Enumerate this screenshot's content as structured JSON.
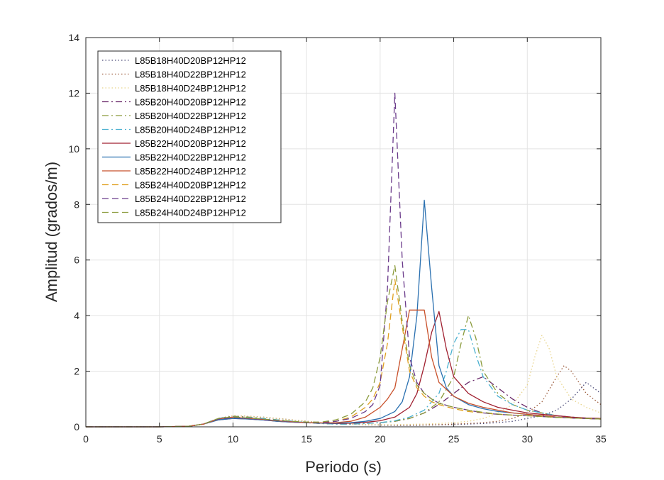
{
  "chart_data": {
    "type": "line",
    "title": "",
    "xlabel": "Periodo (s)",
    "ylabel": "Amplitud (grados/m)",
    "xlim": [
      0,
      35
    ],
    "ylim": [
      0,
      14
    ],
    "xticks": [
      0,
      5,
      10,
      15,
      20,
      25,
      30,
      35
    ],
    "yticks": [
      0,
      2,
      4,
      6,
      8,
      10,
      12,
      14
    ],
    "grid": true,
    "legend_position": "top-left",
    "series": [
      {
        "name": "L85B18H40D20BP12HP12",
        "color": "#4a4a78",
        "dash": "dotted",
        "x": [
          0,
          5,
          7,
          8,
          9,
          10,
          11,
          12,
          13,
          14,
          15,
          16,
          17,
          18,
          19,
          20,
          21,
          22,
          23,
          24,
          25,
          26,
          27,
          28,
          29,
          30,
          31,
          32,
          33,
          34,
          35
        ],
        "y": [
          0,
          0,
          0.02,
          0.1,
          0.3,
          0.4,
          0.38,
          0.35,
          0.3,
          0.25,
          0.2,
          0.15,
          0.12,
          0.1,
          0.08,
          0.06,
          0.05,
          0.05,
          0.06,
          0.07,
          0.08,
          0.1,
          0.12,
          0.15,
          0.2,
          0.3,
          0.4,
          0.6,
          1.0,
          1.6,
          1.2
        ]
      },
      {
        "name": "L85B18H40D22BP12HP12",
        "color": "#9a5a3a",
        "dash": "dotted",
        "x": [
          0,
          5,
          7,
          8,
          9,
          10,
          11,
          12,
          13,
          14,
          15,
          16,
          17,
          18,
          19,
          20,
          21,
          22,
          23,
          24,
          25,
          26,
          27,
          28,
          29,
          30,
          31,
          32,
          32.5,
          33,
          34,
          35
        ],
        "y": [
          0,
          0,
          0.02,
          0.1,
          0.3,
          0.4,
          0.38,
          0.35,
          0.3,
          0.25,
          0.2,
          0.15,
          0.12,
          0.1,
          0.08,
          0.07,
          0.06,
          0.06,
          0.07,
          0.08,
          0.1,
          0.12,
          0.15,
          0.2,
          0.3,
          0.5,
          0.9,
          1.8,
          2.2,
          2.0,
          1.2,
          0.8
        ]
      },
      {
        "name": "L85B18H40D24BP12HP12",
        "color": "#e8d48a",
        "dash": "dotted",
        "x": [
          0,
          5,
          7,
          8,
          9,
          10,
          11,
          12,
          13,
          14,
          15,
          16,
          17,
          18,
          19,
          20,
          21,
          22,
          23,
          24,
          25,
          26,
          27,
          28,
          29,
          30,
          30.5,
          31,
          31.5,
          32,
          33,
          34,
          35
        ],
        "y": [
          0,
          0,
          0.02,
          0.1,
          0.3,
          0.4,
          0.38,
          0.35,
          0.3,
          0.25,
          0.2,
          0.15,
          0.12,
          0.1,
          0.09,
          0.08,
          0.08,
          0.09,
          0.1,
          0.12,
          0.15,
          0.2,
          0.3,
          0.5,
          0.8,
          1.5,
          2.5,
          3.3,
          2.8,
          1.8,
          1.0,
          0.7,
          0.5
        ]
      },
      {
        "name": "L85B20H40D20BP12HP12",
        "color": "#6a2a6a",
        "dash": "dashdot",
        "x": [
          0,
          5,
          7,
          8,
          9,
          10,
          11,
          12,
          13,
          14,
          15,
          16,
          17,
          18,
          19,
          20,
          21,
          22,
          23,
          24,
          25,
          26,
          27,
          28,
          29,
          30,
          31,
          32,
          33,
          34,
          35
        ],
        "y": [
          0,
          0,
          0.02,
          0.1,
          0.3,
          0.38,
          0.35,
          0.3,
          0.25,
          0.2,
          0.15,
          0.12,
          0.1,
          0.1,
          0.12,
          0.15,
          0.2,
          0.3,
          0.5,
          0.8,
          1.2,
          1.6,
          1.8,
          1.4,
          1.0,
          0.7,
          0.5,
          0.4,
          0.35,
          0.3,
          0.28
        ]
      },
      {
        "name": "L85B20H40D22BP12HP12",
        "color": "#8a9a3a",
        "dash": "dashdot",
        "x": [
          0,
          5,
          7,
          8,
          9,
          10,
          11,
          12,
          13,
          14,
          15,
          16,
          17,
          18,
          19,
          20,
          21,
          22,
          23,
          24,
          25,
          25.5,
          26,
          26.5,
          27,
          28,
          29,
          30,
          31,
          32,
          33,
          34,
          35
        ],
        "y": [
          0,
          0,
          0.02,
          0.1,
          0.3,
          0.38,
          0.35,
          0.3,
          0.25,
          0.2,
          0.15,
          0.12,
          0.1,
          0.1,
          0.12,
          0.15,
          0.2,
          0.3,
          0.5,
          0.9,
          1.8,
          3.0,
          4.0,
          3.2,
          2.0,
          1.2,
          0.8,
          0.6,
          0.5,
          0.4,
          0.35,
          0.3,
          0.28
        ]
      },
      {
        "name": "L85B20H40D24BP12HP12",
        "color": "#4ab0d0",
        "dash": "dashdot",
        "x": [
          0,
          5,
          7,
          8,
          9,
          10,
          11,
          12,
          13,
          14,
          15,
          16,
          17,
          18,
          19,
          20,
          21,
          22,
          23,
          24,
          24.5,
          25,
          25.5,
          26,
          26.5,
          27,
          28,
          29,
          30,
          31,
          32,
          33,
          34,
          35
        ],
        "y": [
          0,
          0,
          0.02,
          0.1,
          0.3,
          0.36,
          0.33,
          0.3,
          0.25,
          0.2,
          0.15,
          0.12,
          0.1,
          0.1,
          0.12,
          0.15,
          0.22,
          0.35,
          0.6,
          1.2,
          2.0,
          3.0,
          3.5,
          3.5,
          2.6,
          1.8,
          1.1,
          0.8,
          0.6,
          0.5,
          0.4,
          0.35,
          0.3,
          0.28
        ]
      },
      {
        "name": "L85B22H40D20BP12HP12",
        "color": "#a02030",
        "dash": "solid",
        "x": [
          0,
          5,
          7,
          8,
          9,
          10,
          11,
          12,
          13,
          14,
          15,
          16,
          17,
          18,
          19,
          20,
          21,
          22,
          22.5,
          23,
          23.5,
          24,
          24.5,
          25,
          26,
          27,
          28,
          29,
          30,
          31,
          32,
          33,
          34,
          35
        ],
        "y": [
          0,
          0,
          0.02,
          0.1,
          0.25,
          0.3,
          0.28,
          0.25,
          0.2,
          0.17,
          0.15,
          0.13,
          0.12,
          0.13,
          0.16,
          0.22,
          0.35,
          0.7,
          1.2,
          2.2,
          3.4,
          4.15,
          2.8,
          1.8,
          1.2,
          0.9,
          0.7,
          0.6,
          0.5,
          0.45,
          0.4,
          0.35,
          0.32,
          0.3
        ]
      },
      {
        "name": "L85B22H40D22BP12HP12",
        "color": "#2a70b0",
        "dash": "solid",
        "x": [
          0,
          5,
          7,
          8,
          9,
          10,
          11,
          12,
          13,
          14,
          15,
          16,
          17,
          18,
          19,
          20,
          21,
          21.5,
          22,
          22.5,
          23,
          23.5,
          24,
          24.5,
          25,
          26,
          27,
          28,
          29,
          30,
          31,
          32,
          33,
          34,
          35
        ],
        "y": [
          0,
          0,
          0.02,
          0.1,
          0.25,
          0.3,
          0.28,
          0.25,
          0.2,
          0.17,
          0.15,
          0.13,
          0.13,
          0.15,
          0.2,
          0.3,
          0.55,
          0.9,
          1.8,
          4.0,
          8.15,
          5.0,
          2.2,
          1.4,
          1.1,
          0.8,
          0.65,
          0.55,
          0.5,
          0.45,
          0.4,
          0.35,
          0.32,
          0.3,
          0.28
        ]
      },
      {
        "name": "L85B22H40D24BP12HP12",
        "color": "#c8502a",
        "dash": "solid",
        "x": [
          0,
          5,
          7,
          8,
          9,
          10,
          11,
          12,
          13,
          14,
          15,
          16,
          17,
          18,
          19,
          20,
          20.5,
          21,
          21.5,
          22,
          22.5,
          23,
          23.5,
          24,
          25,
          26,
          27,
          28,
          29,
          30,
          31,
          32,
          33,
          34,
          35
        ],
        "y": [
          0,
          0,
          0.02,
          0.1,
          0.28,
          0.35,
          0.3,
          0.27,
          0.22,
          0.18,
          0.15,
          0.14,
          0.15,
          0.2,
          0.35,
          0.7,
          1.0,
          1.4,
          2.8,
          4.2,
          4.2,
          4.2,
          2.5,
          1.6,
          1.1,
          0.85,
          0.7,
          0.6,
          0.5,
          0.45,
          0.4,
          0.35,
          0.32,
          0.3,
          0.28
        ]
      },
      {
        "name": "L85B24H40D20BP12HP12",
        "color": "#e0a020",
        "dash": "dashed",
        "x": [
          0,
          5,
          7,
          8,
          9,
          10,
          11,
          12,
          13,
          14,
          15,
          16,
          17,
          18,
          19,
          19.5,
          20,
          20.5,
          21,
          21.5,
          22,
          22.5,
          23,
          23.5,
          24,
          25,
          26,
          27,
          28,
          29,
          30,
          31,
          32,
          33,
          34,
          35
        ],
        "y": [
          0,
          0,
          0.02,
          0.1,
          0.28,
          0.35,
          0.3,
          0.27,
          0.22,
          0.18,
          0.15,
          0.15,
          0.2,
          0.35,
          0.7,
          1.0,
          1.6,
          3.0,
          5.3,
          3.6,
          2.0,
          1.4,
          1.1,
          0.9,
          0.8,
          0.65,
          0.55,
          0.5,
          0.45,
          0.42,
          0.4,
          0.37,
          0.34,
          0.32,
          0.3,
          0.28
        ]
      },
      {
        "name": "L85B24H40D22BP12HP12",
        "color": "#6a3a8a",
        "dash": "dashed",
        "x": [
          0,
          5,
          7,
          8,
          9,
          10,
          11,
          12,
          13,
          14,
          15,
          16,
          17,
          18,
          19,
          19.5,
          20,
          20.5,
          21,
          21.5,
          22,
          22.5,
          23,
          23.5,
          24,
          25,
          26,
          27,
          28,
          29,
          30,
          31,
          32,
          33,
          34,
          35
        ],
        "y": [
          0,
          0,
          0.02,
          0.1,
          0.28,
          0.33,
          0.3,
          0.26,
          0.22,
          0.18,
          0.15,
          0.15,
          0.2,
          0.3,
          0.55,
          0.8,
          1.5,
          5.0,
          12.0,
          6.0,
          2.5,
          1.6,
          1.2,
          1.0,
          0.85,
          0.7,
          0.6,
          0.5,
          0.45,
          0.42,
          0.4,
          0.37,
          0.34,
          0.32,
          0.3,
          0.28
        ]
      },
      {
        "name": "L85B24H40D24BP12HP12",
        "color": "#8a9a3a",
        "dash": "dashed",
        "x": [
          0,
          5,
          7,
          8,
          9,
          10,
          11,
          12,
          13,
          14,
          15,
          16,
          17,
          18,
          19,
          19.5,
          20,
          20.5,
          21,
          21.5,
          22,
          22.5,
          23,
          23.5,
          24,
          25,
          26,
          27,
          28,
          29,
          30,
          31,
          32,
          33,
          34,
          35
        ],
        "y": [
          0,
          0,
          0.02,
          0.1,
          0.3,
          0.36,
          0.32,
          0.28,
          0.24,
          0.2,
          0.17,
          0.17,
          0.25,
          0.45,
          0.9,
          1.4,
          2.5,
          4.5,
          5.8,
          3.8,
          2.2,
          1.5,
          1.2,
          1.0,
          0.85,
          0.7,
          0.6,
          0.52,
          0.46,
          0.42,
          0.4,
          0.37,
          0.34,
          0.32,
          0.3,
          0.28
        ]
      }
    ]
  }
}
